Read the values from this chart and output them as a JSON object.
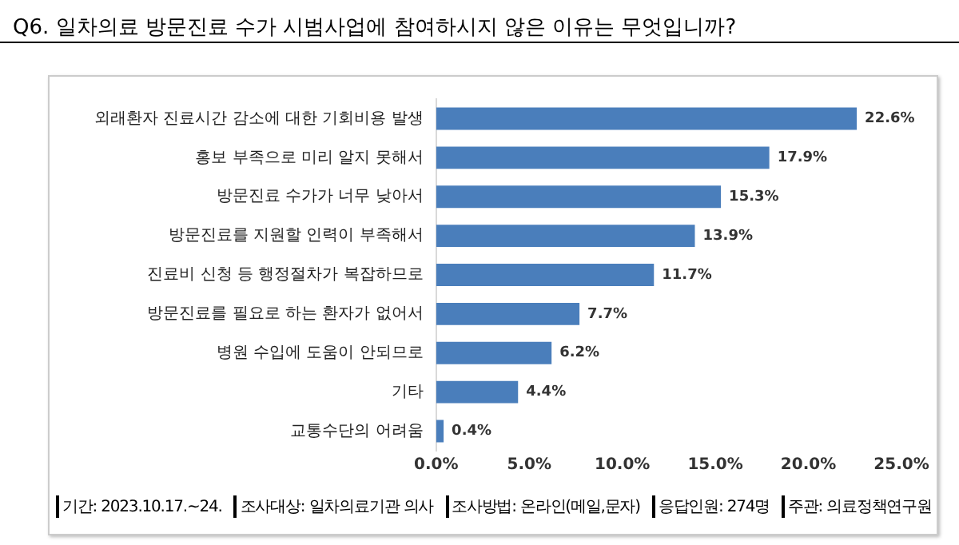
{
  "chart_data": {
    "type": "bar",
    "orientation": "horizontal",
    "title": "Q6. 일차의료 방문진료 수가 시범사업에 참여하시지 않은 이유는 무엇입니까?",
    "categories": [
      "외래환자 진료시간 감소에 대한 기회비용 발생",
      "홍보 부족으로 미리 알지 못해서",
      "방문진료 수가가 너무 낮아서",
      "방문진료를 지원할 인력이 부족해서",
      "진료비 신청 등 행정절차가 복잡하므로",
      "방문진료를 필요로 하는 환자가 없어서",
      "병원 수입에 도움이 안되므로",
      "기타",
      "교통수단의 어려움"
    ],
    "values": [
      22.6,
      17.9,
      15.3,
      13.9,
      11.7,
      7.7,
      6.2,
      4.4,
      0.4
    ],
    "value_labels": [
      "22.6%",
      "17.9%",
      "15.3%",
      "13.9%",
      "11.7%",
      "7.7%",
      "6.2%",
      "4.4%",
      "0.4%"
    ],
    "color": "#4a7ebb",
    "xlim": [
      0,
      25
    ],
    "xticks": [
      {
        "value": 0,
        "label": "0.0%"
      },
      {
        "value": 5,
        "label": "5.0%"
      },
      {
        "value": 10,
        "label": "10.0%"
      },
      {
        "value": 15,
        "label": "15.0%"
      },
      {
        "value": 20,
        "label": "20.0%"
      },
      {
        "value": 25,
        "label": "25.0%"
      }
    ],
    "grid": false,
    "legend": false,
    "annotations": [
      "기간: 2023.10.17.~24.",
      "조사대상: 일차의료기관 의사",
      "조사방법: 온라인(메일,문자)",
      "응답인원: 274명",
      "주관: 의료정책연구원"
    ]
  }
}
